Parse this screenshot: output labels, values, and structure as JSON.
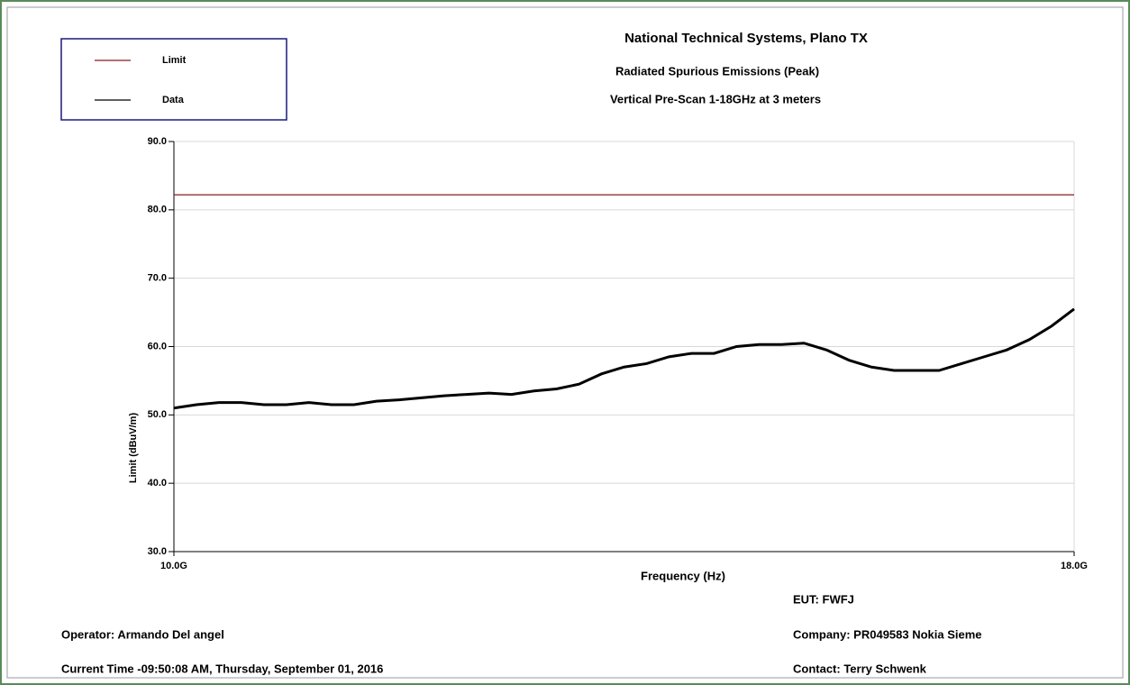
{
  "chart_data": {
    "type": "line",
    "title": "National Technical Systems, Plano TX",
    "subtitle": [
      "Radiated Spurious Emissions (Peak)",
      "Vertical Pre-Scan 1-18GHz at 3 meters"
    ],
    "x_label": "Frequency (Hz)",
    "y_label": "Limit (dBuV/m)",
    "x": [
      10000000000,
      10200000000,
      10400000000,
      10600000000,
      10800000000,
      11000000000,
      11200000000,
      11400000000,
      11600000000,
      11800000000,
      12000000000,
      12200000000,
      12400000000,
      12600000000,
      12800000000,
      13000000000,
      13200000000,
      13400000000,
      13600000000,
      13800000000,
      14000000000,
      14200000000,
      14400000000,
      14600000000,
      14800000000,
      15000000000,
      15200000000,
      15400000000,
      15600000000,
      15800000000,
      16000000000,
      16200000000,
      16400000000,
      16600000000,
      16800000000,
      17000000000,
      17200000000,
      17400000000,
      17600000000,
      17800000000,
      18000000000
    ],
    "series": [
      {
        "name": "Limit",
        "color": "#8b1a1a",
        "values": [
          82.2,
          82.2,
          82.2,
          82.2,
          82.2,
          82.2,
          82.2,
          82.2,
          82.2,
          82.2,
          82.2,
          82.2,
          82.2,
          82.2,
          82.2,
          82.2,
          82.2,
          82.2,
          82.2,
          82.2,
          82.2,
          82.2,
          82.2,
          82.2,
          82.2,
          82.2,
          82.2,
          82.2,
          82.2,
          82.2,
          82.2,
          82.2,
          82.2,
          82.2,
          82.2,
          82.2,
          82.2,
          82.2,
          82.2,
          82.2,
          82.2
        ]
      },
      {
        "name": "Data",
        "color": "#000000",
        "values": [
          51,
          51.5,
          51.8,
          51.8,
          51.5,
          51.5,
          51.8,
          51.5,
          51.5,
          52,
          52.2,
          52.5,
          52.8,
          53,
          53.2,
          53,
          53.5,
          53.8,
          54.5,
          56,
          57,
          57.5,
          58.5,
          59,
          59,
          60,
          60.3,
          60.3,
          60.5,
          59.5,
          58,
          57,
          56.5,
          56.5,
          56.5,
          57.5,
          58.5,
          59.5,
          61,
          63,
          65.5
        ]
      }
    ],
    "xlim": [
      10000000000,
      18000000000
    ],
    "xticks": [
      {
        "value": 10000000000,
        "label": "10.0G"
      },
      {
        "value": 18000000000,
        "label": "18.0G"
      }
    ],
    "ylim": [
      30,
      90
    ],
    "yticks": [
      {
        "value": 30,
        "label": "30.0"
      },
      {
        "value": 40,
        "label": "40.0"
      },
      {
        "value": 50,
        "label": "50.0"
      },
      {
        "value": 60,
        "label": "60.0"
      },
      {
        "value": 70,
        "label": "70.0"
      },
      {
        "value": 80,
        "label": "80.0"
      },
      {
        "value": 90,
        "label": "90.0"
      }
    ],
    "grid": true,
    "legend": "top-left",
    "footer": {
      "eut": "EUT: FWFJ",
      "operator": "Operator: Armando Del angel",
      "company": "Company: PR049583 Nokia Sieme",
      "time": "Current Time -09:50:08 AM, Thursday, September 01, 2016",
      "contact": "Contact: Terry Schwenk"
    }
  }
}
